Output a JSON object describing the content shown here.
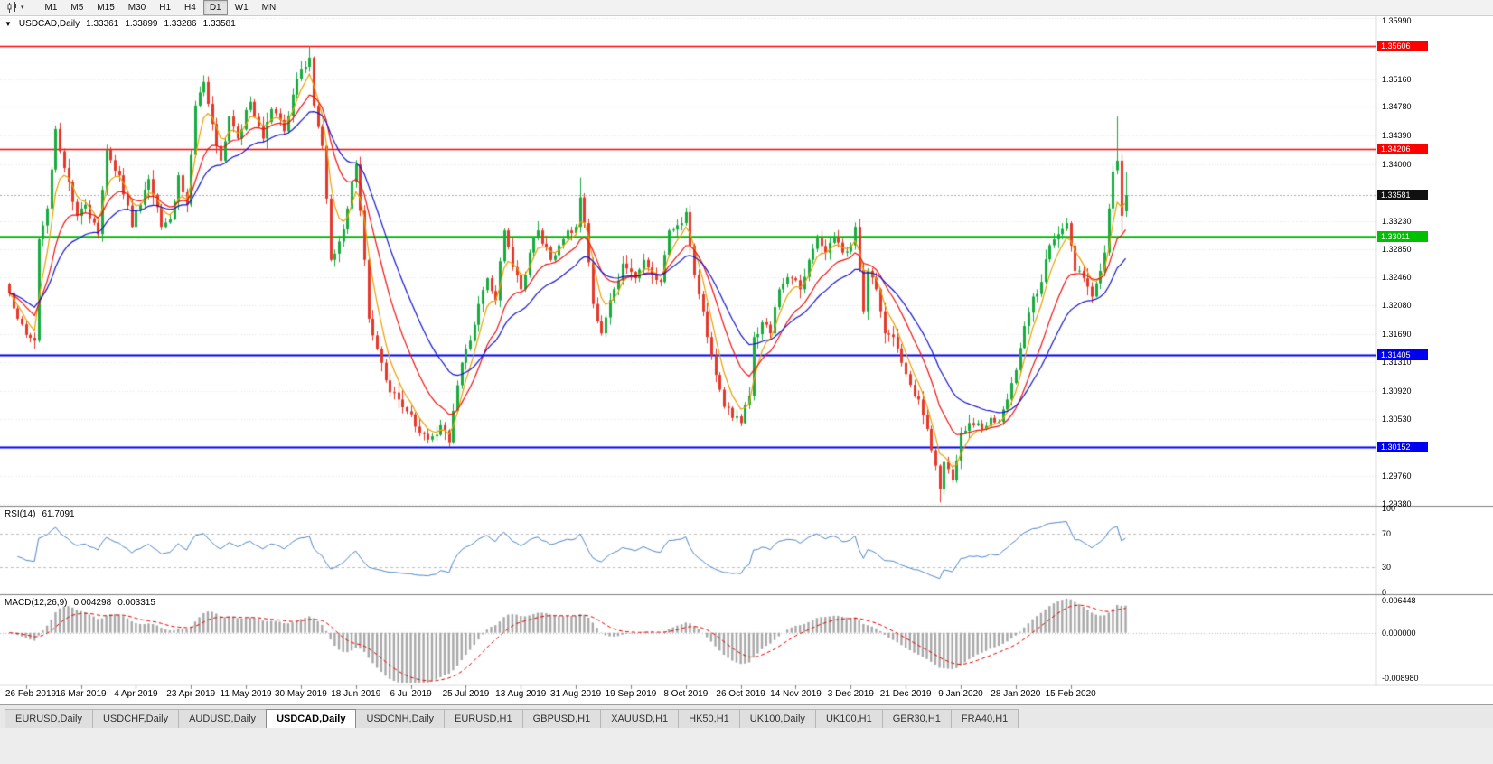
{
  "toolbar": {
    "chart_type": {
      "icon": "candlestick-chart-icon",
      "dropdown": "▾"
    },
    "timeframes": [
      "M1",
      "M5",
      "M15",
      "M30",
      "H1",
      "H4",
      "D1",
      "W1",
      "MN"
    ],
    "active_timeframe": "D1"
  },
  "chart": {
    "collapse_icon": "▼",
    "title": "USDCAD,Daily",
    "open": "1.33361",
    "high": "1.33899",
    "low": "1.33286",
    "close": "1.33581"
  },
  "rsi_panel": {
    "label": "RSI(14)",
    "value": "61.7091",
    "axis_labels": [
      "100",
      "70",
      "30",
      "0"
    ]
  },
  "macd_panel": {
    "label": "MACD(12,26,9)",
    "macd_value": "0.004298",
    "signal_value": "0.003315",
    "axis_labels": [
      "0.006448",
      "0.000000",
      "-0.008980"
    ]
  },
  "tabs": {
    "items": [
      "EURUSD,Daily",
      "USDCHF,Daily",
      "AUDUSD,Daily",
      "USDCAD,Daily",
      "USDCNH,Daily",
      "EURUSD,H1",
      "GBPUSD,H1",
      "XAUUSD,H1",
      "HK50,H1",
      "UK100,Daily",
      "UK100,H1",
      "GER30,H1",
      "FRA40,H1"
    ],
    "active": "USDCAD,Daily"
  },
  "chart_data": {
    "type": "candlestick",
    "symbol": "USDCAD",
    "timeframe": "Daily",
    "y_range": [
      1.2938,
      1.3599
    ],
    "y_ticks": [
      "1.35990",
      "1.35160",
      "1.34780",
      "1.34390",
      "1.34000",
      "1.33230",
      "1.32850",
      "1.32460",
      "1.32080",
      "1.31690",
      "1.31310",
      "1.30920",
      "1.30530",
      "1.29760",
      "1.29380"
    ],
    "x_tick_labels": [
      {
        "label": "26 Feb 2019",
        "idx": 4
      },
      {
        "label": "16 Mar 2019",
        "idx": 17
      },
      {
        "label": "4 Apr 2019",
        "idx": 30
      },
      {
        "label": "23 Apr 2019",
        "idx": 43
      },
      {
        "label": "11 May 2019",
        "idx": 56
      },
      {
        "label": "30 May 2019",
        "idx": 69
      },
      {
        "label": "18 Jun 2019",
        "idx": 82
      },
      {
        "label": "6 Jul 2019",
        "idx": 95
      },
      {
        "label": "25 Jul 2019",
        "idx": 108
      },
      {
        "label": "13 Aug 2019",
        "idx": 121
      },
      {
        "label": "31 Aug 2019",
        "idx": 134
      },
      {
        "label": "19 Sep 2019",
        "idx": 147
      },
      {
        "label": "8 Oct 2019",
        "idx": 160
      },
      {
        "label": "26 Oct 2019",
        "idx": 173
      },
      {
        "label": "14 Nov 2019",
        "idx": 186
      },
      {
        "label": "3 Dec 2019",
        "idx": 199
      },
      {
        "label": "21 Dec 2019",
        "idx": 212
      },
      {
        "label": "9 Jan 2020",
        "idx": 225
      },
      {
        "label": "28 Jan 2020",
        "idx": 238
      },
      {
        "label": "15 Feb 2020",
        "idx": 251
      }
    ],
    "num_candles": 265,
    "price_anchors": [
      [
        0,
        1.3225
      ],
      [
        2,
        1.319
      ],
      [
        4,
        1.3168
      ],
      [
        6,
        1.316
      ],
      [
        7,
        1.3298
      ],
      [
        9,
        1.334
      ],
      [
        11,
        1.3448
      ],
      [
        13,
        1.3395
      ],
      [
        16,
        1.333
      ],
      [
        18,
        1.3345
      ],
      [
        21,
        1.3305
      ],
      [
        23,
        1.342
      ],
      [
        26,
        1.3385
      ],
      [
        29,
        1.3315
      ],
      [
        31,
        1.3345
      ],
      [
        33,
        1.338
      ],
      [
        36,
        1.3315
      ],
      [
        38,
        1.3325
      ],
      [
        40,
        1.3385
      ],
      [
        42,
        1.3345
      ],
      [
        44,
        1.348
      ],
      [
        46,
        1.3512
      ],
      [
        48,
        1.3455
      ],
      [
        50,
        1.3405
      ],
      [
        52,
        1.3465
      ],
      [
        54,
        1.3435
      ],
      [
        57,
        1.3485
      ],
      [
        60,
        1.3435
      ],
      [
        62,
        1.3475
      ],
      [
        65,
        1.3445
      ],
      [
        67,
        1.3495
      ],
      [
        69,
        1.353
      ],
      [
        71,
        1.3545
      ],
      [
        72,
        1.348
      ],
      [
        74,
        1.3425
      ],
      [
        76,
        1.327
      ],
      [
        78,
        1.3295
      ],
      [
        80,
        1.334
      ],
      [
        82,
        1.34
      ],
      [
        84,
        1.327
      ],
      [
        85,
        1.319
      ],
      [
        88,
        1.313
      ],
      [
        90,
        1.309
      ],
      [
        92,
        1.308
      ],
      [
        95,
        1.306
      ],
      [
        97,
        1.3035
      ],
      [
        100,
        1.303
      ],
      [
        102,
        1.3045
      ],
      [
        104,
        1.3022
      ],
      [
        107,
        1.313
      ],
      [
        109,
        1.316
      ],
      [
        111,
        1.321
      ],
      [
        113,
        1.3245
      ],
      [
        115,
        1.3215
      ],
      [
        117,
        1.331
      ],
      [
        119,
        1.326
      ],
      [
        121,
        1.323
      ],
      [
        123,
        1.328
      ],
      [
        125,
        1.331
      ],
      [
        128,
        1.327
      ],
      [
        130,
        1.329
      ],
      [
        132,
        1.331
      ],
      [
        134,
        1.3315
      ],
      [
        135,
        1.3355
      ],
      [
        136,
        1.332
      ],
      [
        138,
        1.321
      ],
      [
        140,
        1.317
      ],
      [
        143,
        1.323
      ],
      [
        145,
        1.3265
      ],
      [
        148,
        1.3245
      ],
      [
        150,
        1.327
      ],
      [
        152,
        1.325
      ],
      [
        154,
        1.324
      ],
      [
        156,
        1.331
      ],
      [
        159,
        1.332
      ],
      [
        160,
        1.3335
      ],
      [
        162,
        1.325
      ],
      [
        164,
        1.32
      ],
      [
        166,
        1.314
      ],
      [
        169,
        1.307
      ],
      [
        171,
        1.3055
      ],
      [
        173,
        1.3048
      ],
      [
        175,
        1.3085
      ],
      [
        176,
        1.3165
      ],
      [
        178,
        1.3185
      ],
      [
        180,
        1.317
      ],
      [
        182,
        1.323
      ],
      [
        185,
        1.3245
      ],
      [
        187,
        1.323
      ],
      [
        189,
        1.327
      ],
      [
        191,
        1.33
      ],
      [
        193,
        1.328
      ],
      [
        195,
        1.33
      ],
      [
        197,
        1.328
      ],
      [
        199,
        1.329
      ],
      [
        200,
        1.3315
      ],
      [
        202,
        1.32
      ],
      [
        203,
        1.3255
      ],
      [
        205,
        1.323
      ],
      [
        207,
        1.317
      ],
      [
        209,
        1.3165
      ],
      [
        211,
        1.313
      ],
      [
        213,
        1.31
      ],
      [
        215,
        1.308
      ],
      [
        217,
        1.304
      ],
      [
        219,
        1.299
      ],
      [
        220,
        1.2958
      ],
      [
        221,
        1.2995
      ],
      [
        223,
        1.297
      ],
      [
        225,
        1.3035
      ],
      [
        228,
        1.3045
      ],
      [
        230,
        1.304
      ],
      [
        232,
        1.3055
      ],
      [
        234,
        1.305
      ],
      [
        236,
        1.308
      ],
      [
        238,
        1.312
      ],
      [
        240,
        1.318
      ],
      [
        242,
        1.322
      ],
      [
        244,
        1.324
      ],
      [
        246,
        1.329
      ],
      [
        248,
        1.3305
      ],
      [
        250,
        1.332
      ],
      [
        252,
        1.3255
      ],
      [
        254,
        1.3245
      ],
      [
        256,
        1.322
      ],
      [
        258,
        1.3255
      ],
      [
        259,
        1.328
      ],
      [
        260,
        1.334
      ],
      [
        261,
        1.339
      ],
      [
        262,
        1.3405
      ],
      [
        263,
        1.333
      ],
      [
        264,
        1.33581
      ]
    ],
    "candle_overrides": {
      "46": {
        "high": 1.3521
      },
      "71": {
        "high": 1.35606
      },
      "104": {
        "low": 1.30152
      },
      "135": {
        "high": 1.3382
      },
      "220": {
        "low": 1.294
      },
      "262": {
        "open": 1.3392,
        "high": 1.3465
      },
      "263": {
        "open": 1.3405,
        "low": 1.3308
      },
      "264": {
        "open": 1.33361,
        "high": 1.33899,
        "low": 1.33286,
        "close": 1.33581
      }
    },
    "levels": [
      {
        "price": 1.35606,
        "label": "1.35606",
        "color": "#FF0000",
        "width": 1.5
      },
      {
        "price": 1.34206,
        "label": "1.34206",
        "color": "#FF0000",
        "width": 1.5
      },
      {
        "price": 1.33011,
        "label": "1.33011",
        "color": "#00C000",
        "width": 2.5
      },
      {
        "price": 1.31405,
        "label": "1.31405",
        "color": "#0000F0",
        "width": 2
      },
      {
        "price": 1.30152,
        "label": "1.30152",
        "color": "#0000F0",
        "width": 2
      }
    ],
    "current_price": {
      "value": 1.33581,
      "label": "1.33581",
      "badge_color": "#101010"
    },
    "moving_averages": [
      {
        "type": "EMA",
        "period": 5,
        "color": "#E8A000"
      },
      {
        "type": "EMA",
        "period": 13,
        "color": "#F01010"
      },
      {
        "type": "EMA",
        "period": 24,
        "color": "#1414CC"
      }
    ],
    "candle_colors": {
      "bull": "#18AC3E",
      "bear": "#E5382B"
    },
    "rsi": {
      "period": 14,
      "color": "#4F86C6",
      "levels": [
        70,
        30
      ],
      "range": [
        0,
        100
      ],
      "current": 61.7091
    },
    "macd": {
      "fast": 12,
      "slow": 26,
      "signal": 9,
      "histogram_color": "#A8A8A8",
      "signal_color": "#E00000",
      "range": [
        -0.00898,
        0.006448
      ],
      "current_macd": 0.004298,
      "current_signal": 0.003315
    }
  }
}
